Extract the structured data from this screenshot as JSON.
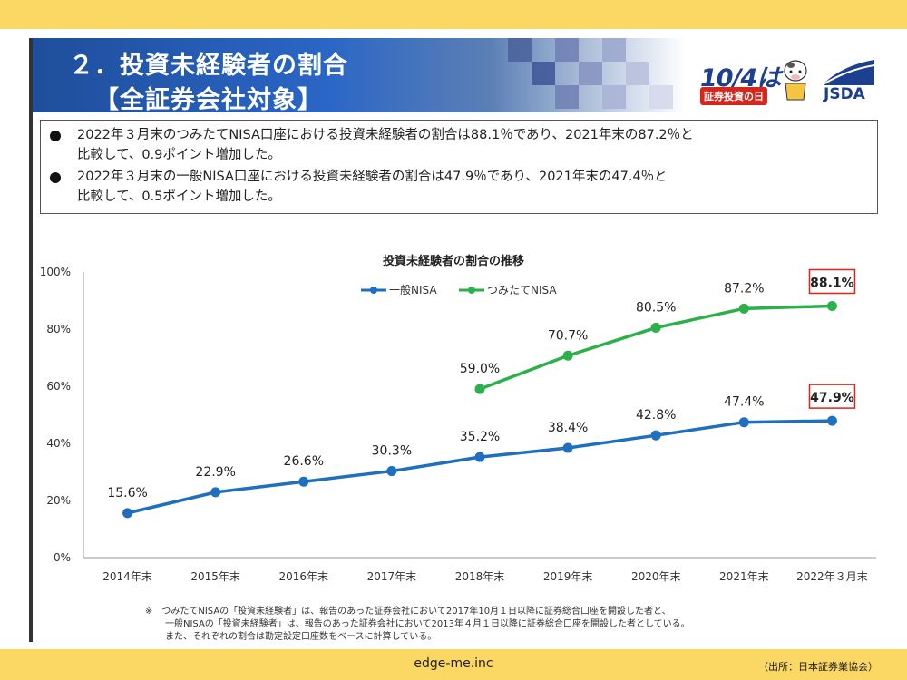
{
  "header": {
    "title_line1": "２．投資未経験者の割合",
    "title_line2": "【全証券会社対象】",
    "logo_date": "10/4は",
    "logo_tag": "証券投資の日",
    "logo_org": "JSDA"
  },
  "summary": [
    {
      "line1": "2022年３月末のつみたてNISA口座における投資未経験者の割合は88.1％であり、2021年末の87.2％と",
      "line2": "比較して、0.9ポイント増加した。"
    },
    {
      "line1": "2022年３月末の一般NISA口座における投資未経験者の割合は47.9％であり、2021年末の47.4％と",
      "line2": "比較して、0.5ポイント増加した。"
    }
  ],
  "chart_data": {
    "type": "line",
    "title": "投資未経験者の割合の推移",
    "categories": [
      "2014年末",
      "2015年末",
      "2016年末",
      "2017年末",
      "2018年末",
      "2019年末",
      "2020年末",
      "2021年末",
      "2022年３月末"
    ],
    "series": [
      {
        "name": "一般NISA",
        "color": "#1f6fbf",
        "values": [
          15.6,
          22.9,
          26.6,
          30.3,
          35.2,
          38.4,
          42.8,
          47.4,
          47.9
        ],
        "labels": [
          "15.6%",
          "22.9%",
          "26.6%",
          "30.3%",
          "35.2%",
          "38.4%",
          "42.8%",
          "47.4%",
          "47.9%"
        ]
      },
      {
        "name": "つみたてNISA",
        "color": "#2bb04a",
        "values": [
          null,
          null,
          null,
          null,
          59.0,
          70.7,
          80.5,
          87.2,
          88.1
        ],
        "labels": [
          null,
          null,
          null,
          null,
          "59.0%",
          "70.7%",
          "80.5%",
          "87.2%",
          "88.1%"
        ]
      }
    ],
    "ylim": [
      0,
      100
    ],
    "yticks": [
      "0%",
      "20%",
      "40%",
      "60%",
      "80%",
      "100%"
    ],
    "highlight_color": "#d9261c",
    "legend_position": "top-center"
  },
  "footnote": {
    "line1": "※　つみたてNISAの「投資未経験者」は、報告のあった証券会社において2017年10月１日以降に証券総合口座を開設した者と、",
    "line2": "一般NISAの「投資未経験者」は、報告のあった証券会社において2013年４月１日以降に証券総合口座を開設した者としている。",
    "line3": "また、それぞれの割合は勘定設定口座数をベースに計算している。"
  },
  "footer": {
    "site": "edge-me.inc",
    "source": "（出所：日本証券業協会）"
  }
}
